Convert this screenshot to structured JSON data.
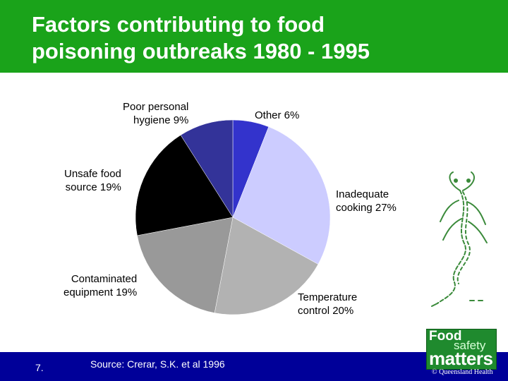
{
  "title": {
    "line1": "Factors contributing to food",
    "line2": "poisoning outbreaks 1980 - 1995"
  },
  "chart_data": {
    "type": "pie",
    "title": "Factors contributing to food poisoning outbreaks 1980 - 1995",
    "unit": "%",
    "slices": [
      {
        "label": "Other",
        "value": 6,
        "color": "#3333cc",
        "label_lines": [
          "Other 6%"
        ]
      },
      {
        "label": "Inadequate cooking",
        "value": 27,
        "color": "#ccccff",
        "label_lines": [
          "Inadequate",
          "cooking 27%"
        ]
      },
      {
        "label": "Temperature control",
        "value": 20,
        "color": "#b2b2b2",
        "label_lines": [
          "Temperature",
          "control 20%"
        ]
      },
      {
        "label": "Contaminated equipment",
        "value": 19,
        "color": "#999999",
        "label_lines": [
          "Contaminated",
          "equipment 19%"
        ]
      },
      {
        "label": "Unsafe food source",
        "value": 19,
        "color": "#000000",
        "label_lines": [
          "Unsafe food",
          "source 19%"
        ]
      },
      {
        "label": "Poor personal hygiene",
        "value": 9,
        "color": "#333399",
        "label_lines": [
          "Poor personal",
          "hygiene 9%"
        ]
      }
    ]
  },
  "footer": {
    "slide_number": "7.",
    "source": "Source: Crerar, S.K. et al 1996",
    "copyright": "© Queensland Health"
  },
  "logo": {
    "line1": "Food",
    "line2": "safety",
    "line3": "matters"
  },
  "colors": {
    "title_bar": "#1aa31a",
    "footer_bar": "#000099",
    "logo_bg": "#1f8a2e"
  },
  "icons": [
    "bacteria-illustration"
  ]
}
